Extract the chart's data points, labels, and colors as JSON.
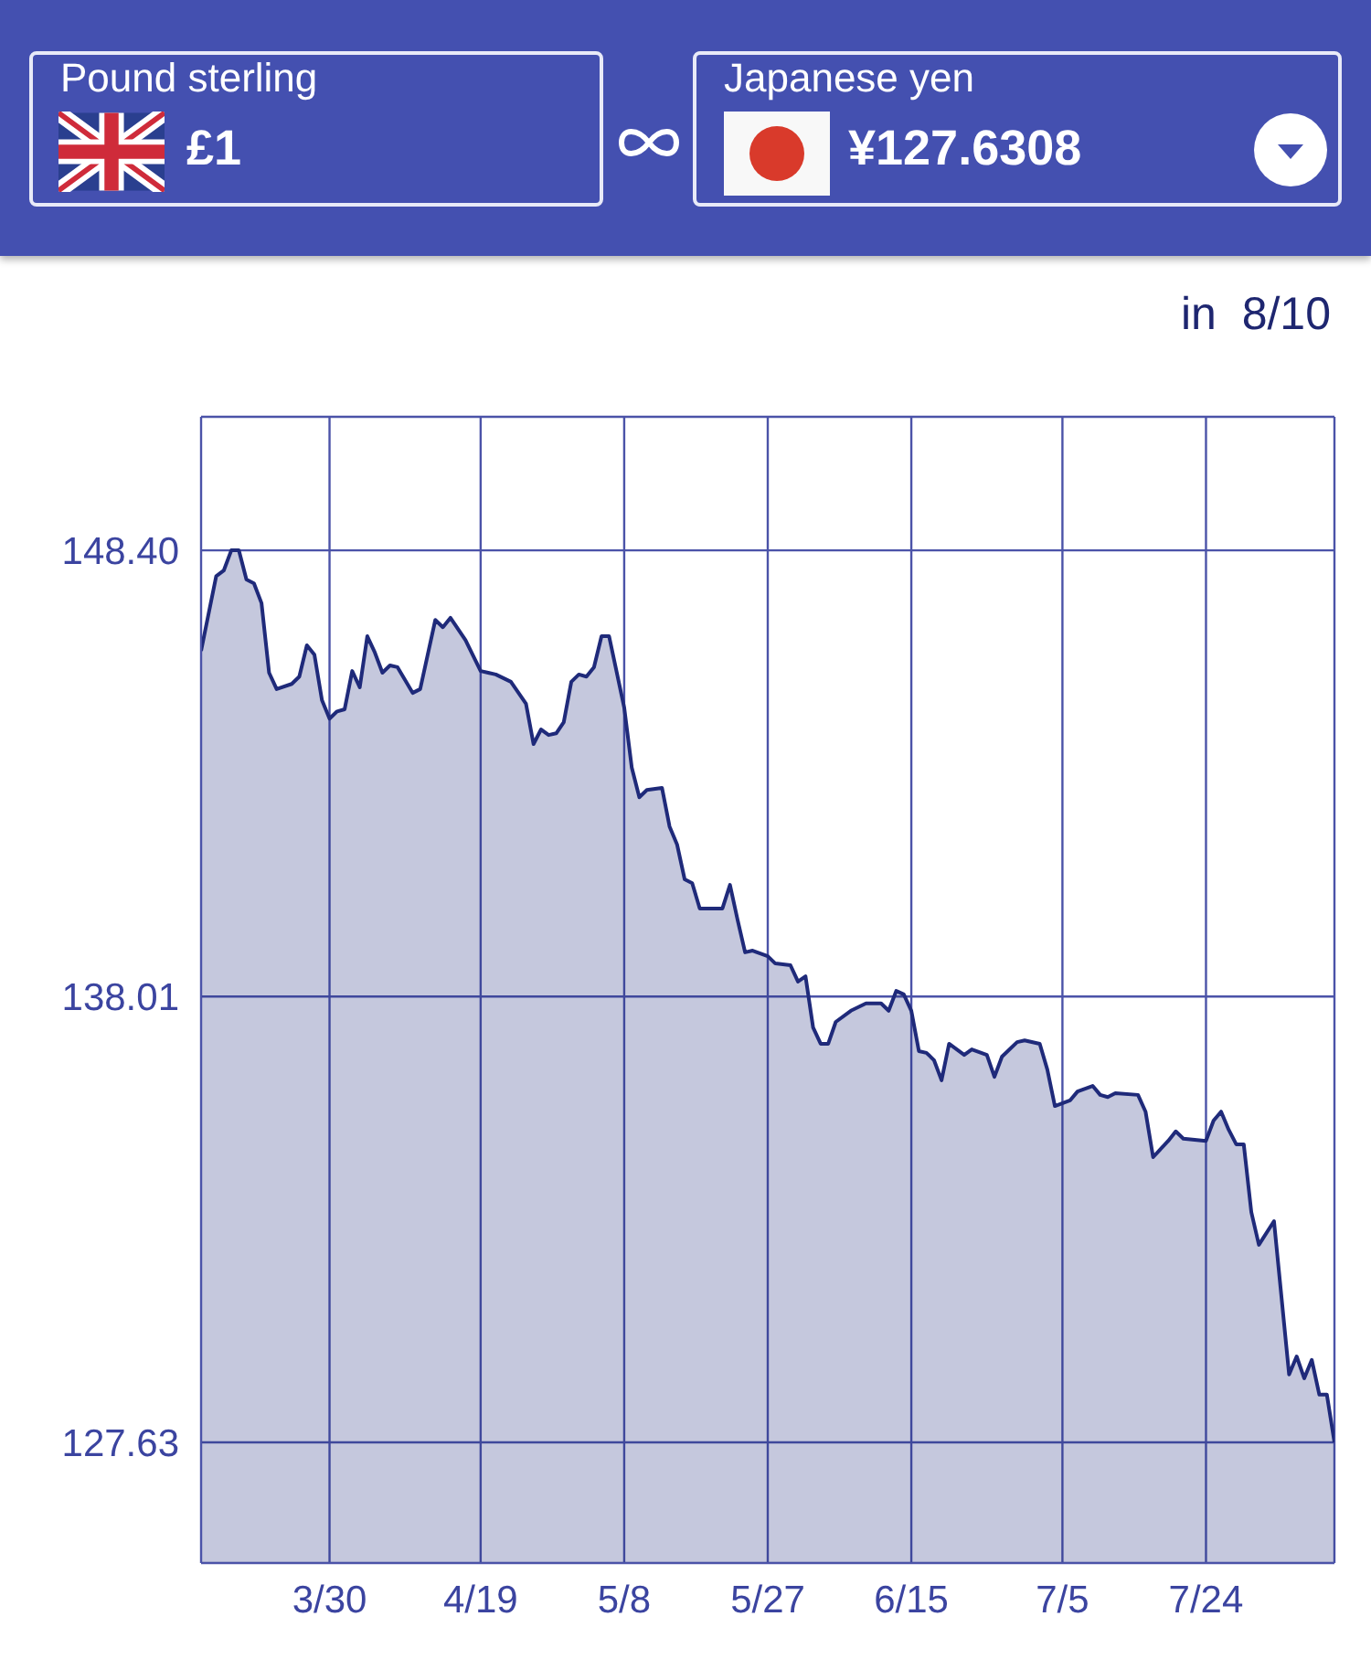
{
  "chart_data": {
    "type": "area",
    "annotations": [
      "Pound sterling",
      "£1",
      "Japanese yen",
      "¥127.6308",
      "in  8/10"
    ],
    "x": [
      "--03-13",
      "--03-15",
      "--03-16",
      "--03-17",
      "--03-18",
      "--03-19",
      "--03-20",
      "--03-21",
      "--03-22",
      "--03-23",
      "--03-25",
      "--03-26",
      "--03-27",
      "--03-28",
      "--03-29",
      "--03-30",
      "--03-31",
      "--04-01",
      "--04-02",
      "--04-03",
      "--04-04",
      "--04-05",
      "--04-06",
      "--04-07",
      "--04-08",
      "--04-10",
      "--04-11",
      "--04-13",
      "--04-14",
      "--04-15",
      "--04-17",
      "--04-19",
      "--04-20",
      "--04-21",
      "--04-23",
      "--04-25",
      "--04-26",
      "--04-27",
      "--04-28",
      "--04-29",
      "--04-30",
      "--05-01",
      "--05-02",
      "--05-03",
      "--05-04",
      "--05-05",
      "--05-06",
      "--05-08",
      "--05-09",
      "--05-10",
      "--05-11",
      "--05-13",
      "--05-14",
      "--05-15",
      "--05-16",
      "--05-17",
      "--05-18",
      "--05-21",
      "--05-22",
      "--05-23",
      "--05-24",
      "--05-25",
      "--05-27",
      "--05-28",
      "--05-30",
      "--05-31",
      "--06-01",
      "--06-02",
      "--06-03",
      "--06-04",
      "--06-05",
      "--06-07",
      "--06-09",
      "--06-11",
      "--06-12",
      "--06-13",
      "--06-14",
      "--06-15",
      "--06-16",
      "--06-17",
      "--06-18",
      "--06-19",
      "--06-20",
      "--06-22",
      "--06-23",
      "--06-25",
      "--06-26",
      "--06-27",
      "--06-29",
      "--06-30",
      "--07-02",
      "--07-03",
      "--07-04",
      "--07-06",
      "--07-07",
      "--07-09",
      "--07-10",
      "--07-11",
      "--07-12",
      "--07-15",
      "--07-16",
      "--07-17",
      "--07-19",
      "--07-20",
      "--07-21",
      "--07-24",
      "--07-25",
      "--07-26",
      "--07-27",
      "--07-28",
      "--07-29",
      "--07-30",
      "--07-31",
      "--08-02",
      "--08-04",
      "--08-05",
      "--08-06",
      "--08-07",
      "--08-08",
      "--08-09",
      "--08-10"
    ],
    "series": [
      {
        "color": "#1f2a7a",
        "values": [
          146.06,
          147.8,
          147.93,
          148.4,
          148.4,
          147.72,
          147.63,
          147.17,
          145.55,
          145.17,
          145.29,
          145.46,
          146.19,
          145.97,
          144.91,
          144.48,
          144.65,
          144.7,
          145.59,
          145.21,
          146.4,
          146.02,
          145.55,
          145.72,
          145.68,
          145.08,
          145.17,
          146.78,
          146.61,
          146.83,
          146.31,
          145.59,
          145.55,
          145.51,
          145.34,
          144.83,
          143.89,
          144.23,
          144.1,
          144.14,
          144.4,
          145.34,
          145.51,
          145.46,
          145.68,
          146.4,
          146.4,
          144.74,
          143.34,
          142.65,
          142.82,
          142.87,
          141.97,
          141.55,
          140.74,
          140.65,
          140.06,
          140.06,
          140.61,
          139.8,
          139.04,
          139.08,
          138.95,
          138.78,
          138.74,
          138.36,
          138.48,
          137.29,
          136.91,
          136.91,
          137.42,
          137.68,
          137.85,
          137.85,
          137.68,
          138.14,
          138.06,
          137.68,
          136.74,
          136.7,
          136.53,
          136.06,
          136.91,
          136.65,
          136.78,
          136.65,
          136.14,
          136.61,
          136.95,
          136.99,
          136.91,
          136.31,
          135.46,
          135.59,
          135.8,
          135.93,
          135.72,
          135.67,
          135.76,
          135.72,
          135.33,
          134.27,
          134.65,
          134.87,
          134.7,
          134.65,
          135.12,
          135.33,
          134.91,
          134.57,
          134.57,
          132.99,
          132.23,
          132.78,
          129.21,
          129.63,
          129.12,
          129.55,
          128.74,
          128.74,
          127.63
        ]
      }
    ],
    "xlim": [
      "--03-13",
      "--08-10"
    ],
    "xticks": [
      {
        "value": "--03-30",
        "label": "3/30"
      },
      {
        "value": "--04-19",
        "label": "4/19"
      },
      {
        "value": "--05-08",
        "label": "5/8"
      },
      {
        "value": "--05-27",
        "label": "5/27"
      },
      {
        "value": "--06-15",
        "label": "6/15"
      },
      {
        "value": "--07-05",
        "label": "7/5"
      },
      {
        "value": "--07-24",
        "label": "7/24"
      }
    ],
    "ylim": [
      124.82,
      151.51
    ],
    "yticks": [
      127.63,
      138.01,
      {
        "value": 148.4,
        "label": "148.40"
      }
    ],
    "grid": true,
    "legend": false,
    "marker": "none",
    "line_style": "solid"
  }
}
